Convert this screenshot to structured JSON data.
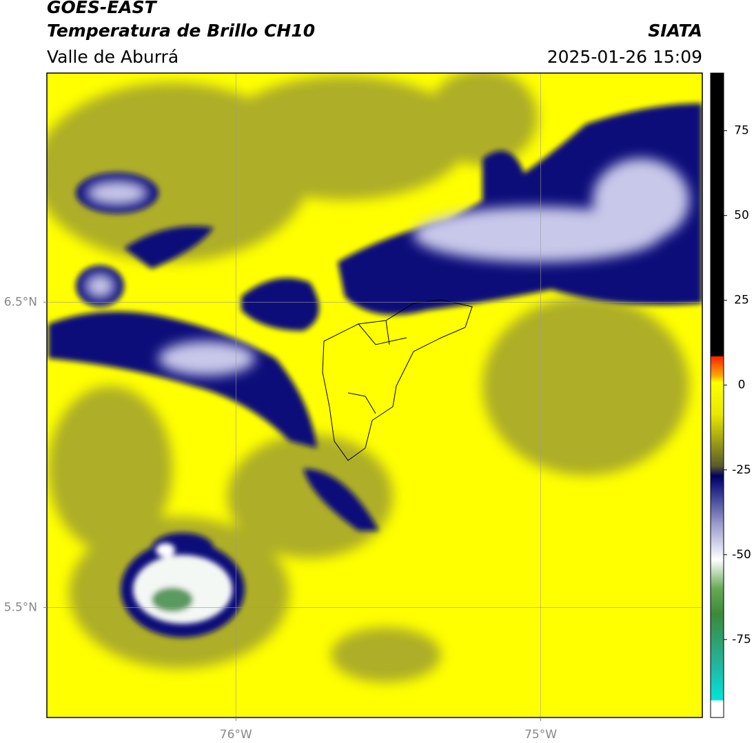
{
  "header": {
    "title": "GOES-EAST",
    "subtitle": "Temperatura de Brillo CH10",
    "region": "Valle de Aburrá",
    "source": "SIATA",
    "datetime": "2025-01-26 15:09"
  },
  "map": {
    "xlim": [
      -76.62,
      -74.47
    ],
    "ylim": [
      5.14,
      7.25
    ],
    "xticks": [
      {
        "value": -76,
        "label": "76°W"
      },
      {
        "value": -75,
        "label": "75°W"
      }
    ],
    "yticks": [
      {
        "value": 6.5,
        "label": "6.5°N"
      },
      {
        "value": 5.5,
        "label": "5.5°N"
      }
    ],
    "grid": true
  },
  "colorbar": {
    "lim": [
      -98,
      92
    ],
    "ticks": [
      75,
      50,
      25,
      0,
      -25,
      -50,
      -75
    ]
  }
}
